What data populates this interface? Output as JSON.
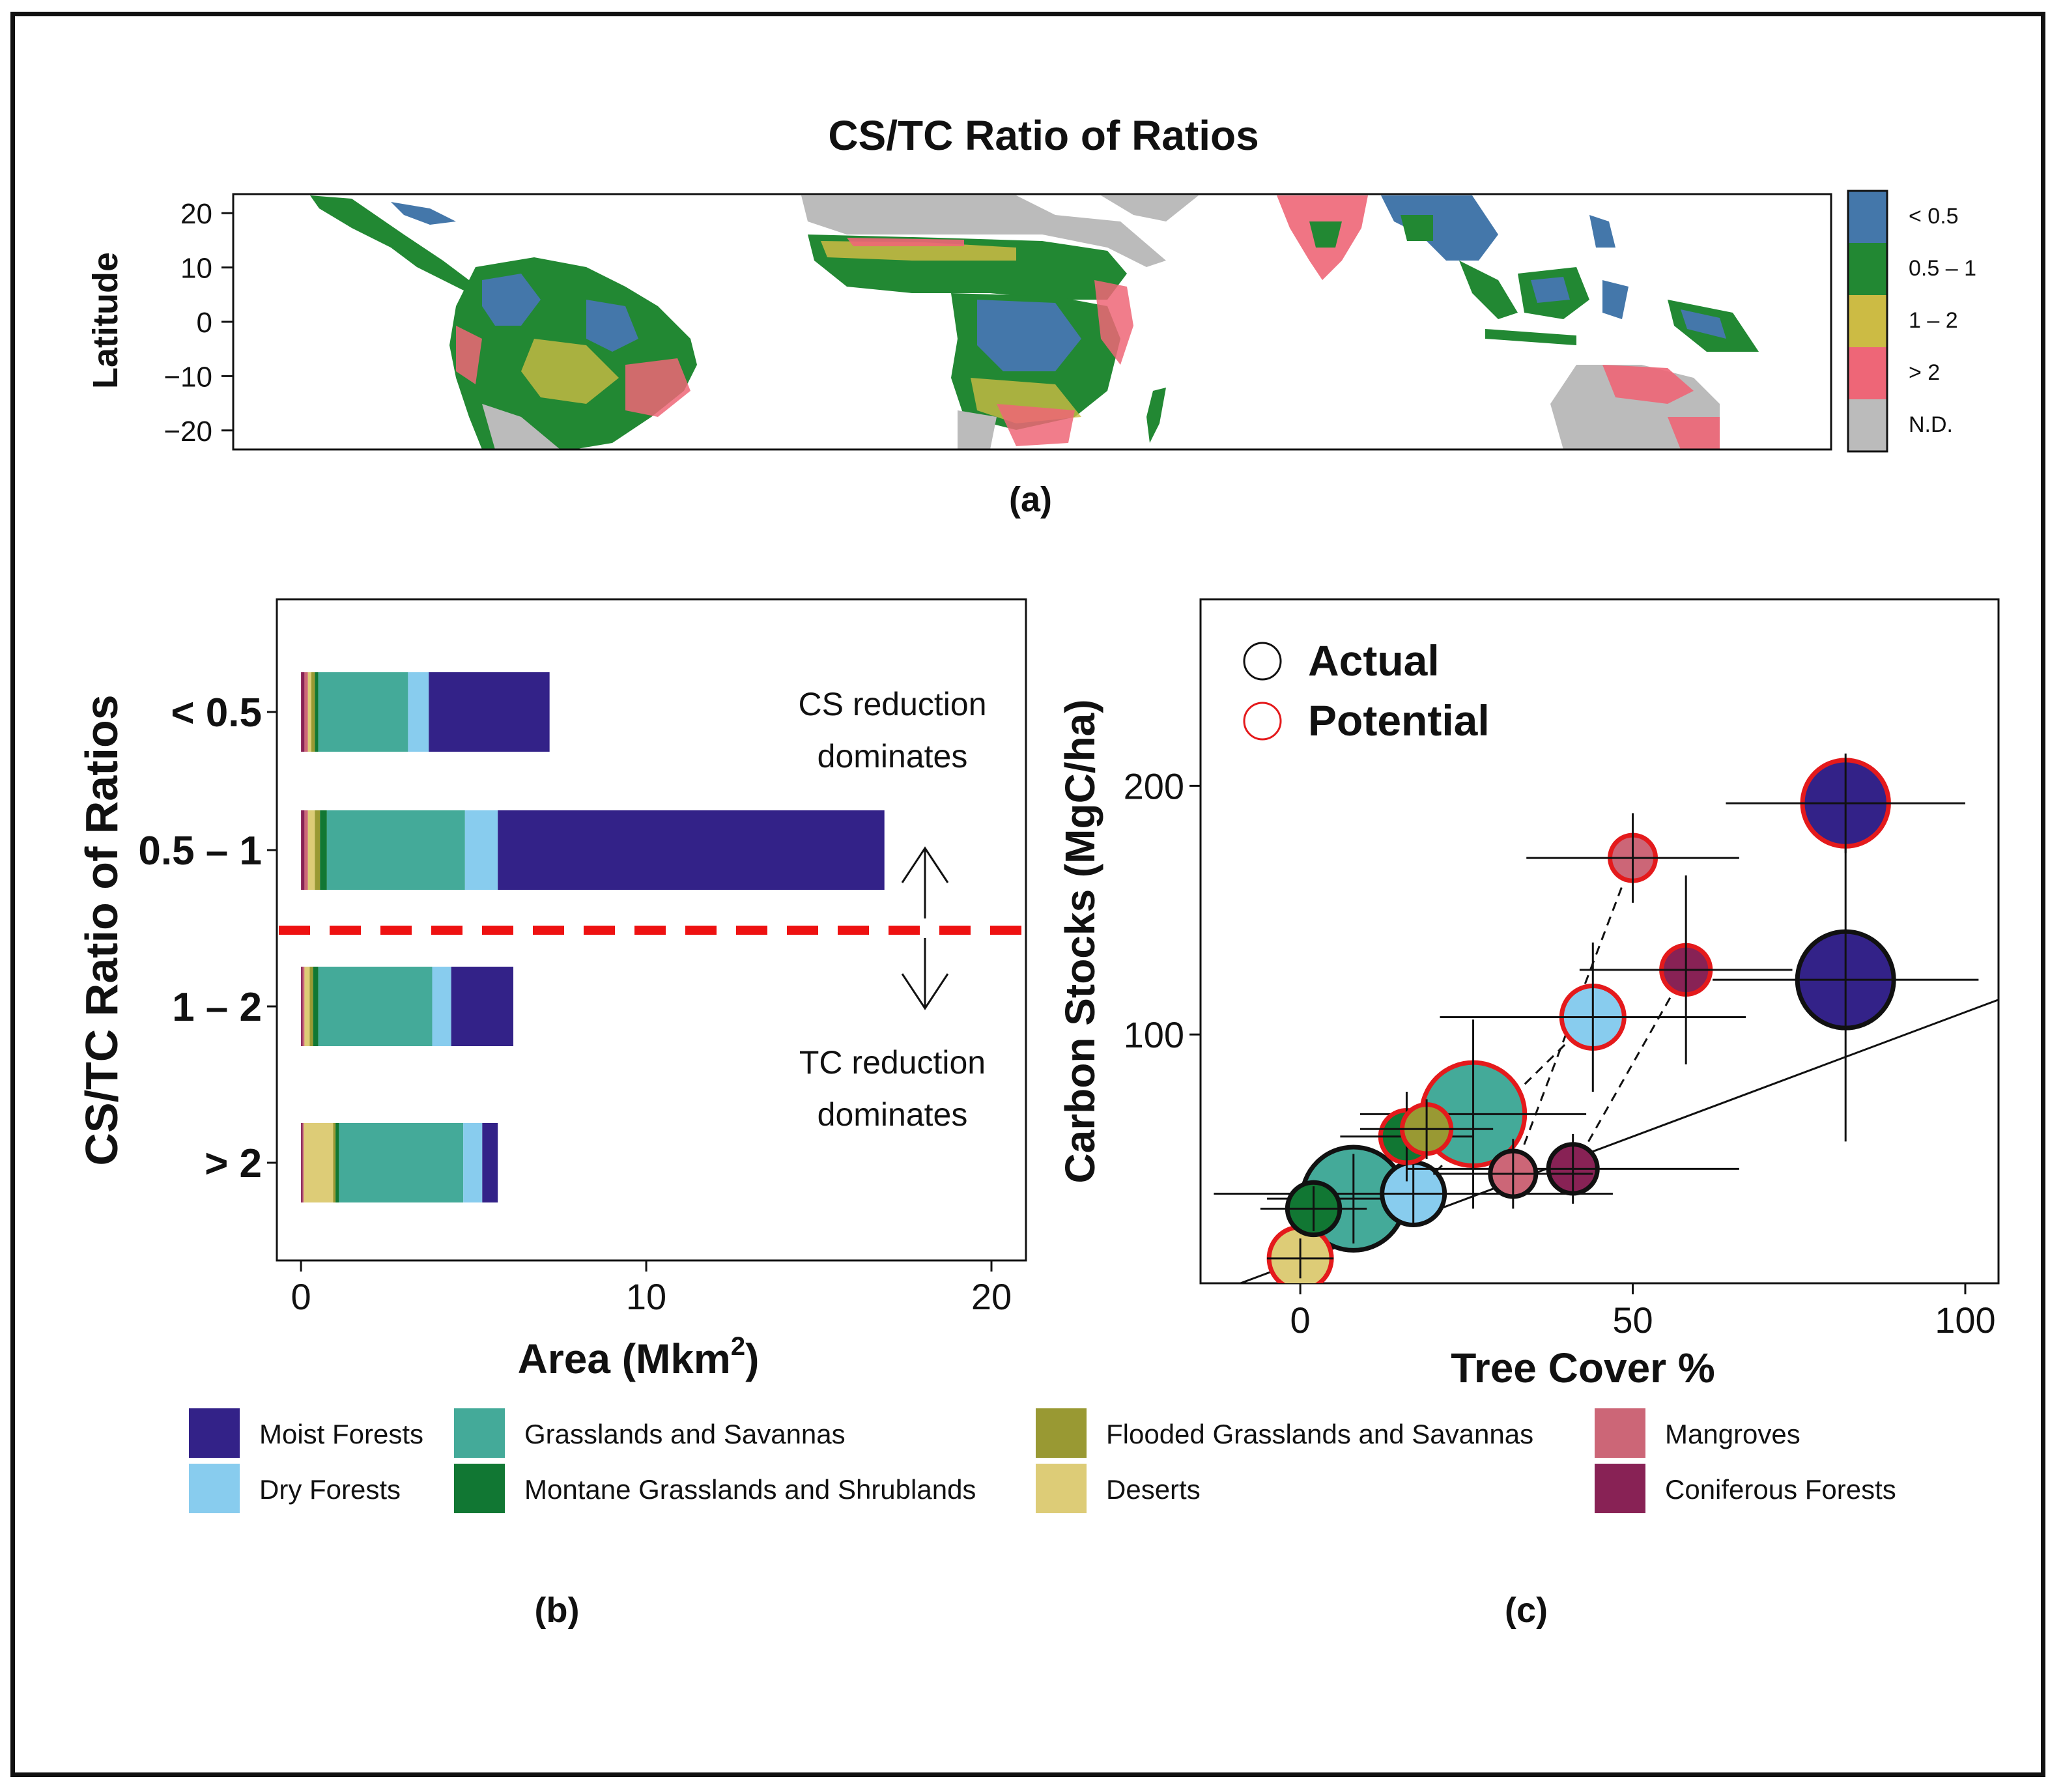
{
  "panel_labels": {
    "a": "(a)",
    "b": "(b)",
    "c": "(c)"
  },
  "colors": {
    "moist_forests": "#332288",
    "dry_forests": "#88CCEE",
    "grasslands_savannas": "#44AA99",
    "montane_grasslands": "#117733",
    "flooded_grasslands": "#999933",
    "deserts": "#DDCC77",
    "mangroves": "#CC6677",
    "coniferous_forests": "#882255",
    "map_lt05": "#4477AA",
    "map_05_1": "#228833",
    "map_1_2": "#CCBB44",
    "map_gt2": "#EE6677",
    "map_nd": "#BBBBBB",
    "dashed_line": "#EE1111",
    "potential_ring": "#E41A1C"
  },
  "chart_data": [
    {
      "id": "a",
      "type": "heatmap",
      "title": "CS/TC Ratio of Ratios",
      "ylabel": "Latitude",
      "yticks": [
        "20",
        "10",
        "0",
        "−10",
        "−20"
      ],
      "ylim": [
        -23.5,
        23.5
      ],
      "legend": [
        {
          "label": "< 0.5",
          "color_key": "map_lt05"
        },
        {
          "label": "0.5 – 1",
          "color_key": "map_05_1"
        },
        {
          "label": "1 – 2",
          "color_key": "map_1_2"
        },
        {
          "label": "> 2",
          "color_key": "map_gt2"
        },
        {
          "label": "N.D.",
          "color_key": "map_nd"
        }
      ]
    },
    {
      "id": "b",
      "type": "bar",
      "orientation": "horizontal",
      "stacked": true,
      "xlabel": "Area (Mkm",
      "xlabel_sup": "2",
      "xlabel_end": ")",
      "ylabel": "CS/TC Ratio of Ratios",
      "xlim": [
        -0.7,
        21
      ],
      "xticks": [
        0,
        10,
        20
      ],
      "categories": [
        "< 0.5",
        "0.5 – 1",
        "1 – 2",
        "> 2"
      ],
      "series": [
        {
          "name": "Coniferous Forests",
          "color_key": "coniferous_forests",
          "values": [
            0.1,
            0.1,
            0.05,
            0.05
          ]
        },
        {
          "name": "Mangroves",
          "color_key": "mangroves",
          "values": [
            0.1,
            0.1,
            0.05,
            0.03
          ]
        },
        {
          "name": "Deserts",
          "color_key": "deserts",
          "values": [
            0.1,
            0.2,
            0.15,
            0.85
          ]
        },
        {
          "name": "Flooded Grasslands and Savannas",
          "color_key": "flooded_grasslands",
          "values": [
            0.1,
            0.15,
            0.1,
            0.07
          ]
        },
        {
          "name": "Montane Grasslands and Shrublands",
          "color_key": "montane_grasslands",
          "values": [
            0.1,
            0.2,
            0.15,
            0.1
          ]
        },
        {
          "name": "Grasslands and Savannas",
          "color_key": "grasslands_savannas",
          "values": [
            2.6,
            4.0,
            3.3,
            3.6
          ]
        },
        {
          "name": "Dry Forests",
          "color_key": "dry_forests",
          "values": [
            0.6,
            0.95,
            0.55,
            0.55
          ]
        },
        {
          "name": "Moist Forests",
          "color_key": "moist_forests",
          "values": [
            3.5,
            11.2,
            1.8,
            0.45
          ]
        }
      ],
      "annotations": {
        "top": [
          "CS reduction",
          "dominates"
        ],
        "bottom": [
          "TC reduction",
          "dominates"
        ],
        "threshold_between": [
          "0.5 – 1",
          "1 – 2"
        ]
      }
    },
    {
      "id": "c",
      "type": "scatter",
      "xlabel": "Tree Cover %",
      "ylabel": "Carbon Stocks (MgC/ha)",
      "xlim": [
        -15,
        105
      ],
      "ylim": [
        0,
        275
      ],
      "xticks": [
        0,
        50,
        100
      ],
      "yticks": [
        100,
        200
      ],
      "legend": [
        {
          "label": "Actual",
          "ring": "black"
        },
        {
          "label": "Potential",
          "ring": "red"
        }
      ],
      "reference_line": {
        "intercept": 9,
        "slope": 1.0
      },
      "points": [
        {
          "biome": "Moist Forests",
          "color_key": "moist_forests",
          "kind": "actual",
          "x": 82,
          "y": 122,
          "xerr": 20,
          "yerr": 65,
          "size": 10
        },
        {
          "biome": "Moist Forests",
          "color_key": "moist_forests",
          "kind": "potential",
          "x": 82,
          "y": 193,
          "xerr": 18,
          "yerr": 20,
          "size": 8.5
        },
        {
          "biome": "Mangroves",
          "color_key": "mangroves",
          "kind": "potential",
          "x": 50,
          "y": 171,
          "xerr": 16,
          "yerr": 18,
          "size": 2.5
        },
        {
          "biome": "Coniferous Forests",
          "color_key": "coniferous_forests",
          "kind": "potential",
          "x": 58,
          "y": 126,
          "xerr": 16,
          "yerr": 38,
          "size": 3
        },
        {
          "biome": "Dry Forests",
          "color_key": "dry_forests",
          "kind": "potential",
          "x": 44,
          "y": 107,
          "xerr": 23,
          "yerr": 30,
          "size": 5
        },
        {
          "biome": "Grasslands and Savannas",
          "color_key": "grasslands_savannas",
          "kind": "potential",
          "x": 26,
          "y": 68,
          "xerr": 17,
          "yerr": 38,
          "size": 11
        },
        {
          "biome": "Flooded Grasslands and Savannas",
          "color_key": "flooded_grasslands",
          "kind": "potential",
          "x": 19,
          "y": 62,
          "xerr": 10,
          "yerr": 12,
          "size": 3
        },
        {
          "biome": "Montane Grasslands and Shrublands",
          "color_key": "montane_grasslands",
          "kind": "potential",
          "x": 16,
          "y": 59,
          "xerr": 10,
          "yerr": 18,
          "size": 3.5
        },
        {
          "biome": "Mangroves",
          "color_key": "mangroves",
          "kind": "actual",
          "x": 32,
          "y": 44,
          "xerr": 12,
          "yerr": 14,
          "size": 2.5
        },
        {
          "biome": "Coniferous Forests",
          "color_key": "coniferous_forests",
          "kind": "actual",
          "x": 41,
          "y": 46,
          "xerr": 25,
          "yerr": 14,
          "size": 3
        },
        {
          "biome": "Dry Forests",
          "color_key": "dry_forests",
          "kind": "actual",
          "x": 17,
          "y": 36,
          "xerr": 30,
          "yerr": 13,
          "size": 5
        },
        {
          "biome": "Grasslands and Savannas",
          "color_key": "grasslands_savannas",
          "kind": "actual",
          "x": 8,
          "y": 34,
          "xerr": 13,
          "yerr": 18,
          "size": 11
        },
        {
          "biome": "Montane Grasslands and Shrublands",
          "color_key": "montane_grasslands",
          "kind": "actual",
          "x": 2,
          "y": 30,
          "xerr": 8,
          "yerr": 9,
          "size": 3.5
        },
        {
          "biome": "Deserts",
          "color_key": "deserts",
          "kind": "potential",
          "x": 0,
          "y": 10,
          "xerr": 5,
          "yerr": 8,
          "size": 5
        }
      ],
      "dashed_links": [
        {
          "from": [
            2,
            30
          ],
          "to": [
            16,
            59
          ]
        },
        {
          "from": [
            8,
            34
          ],
          "to": [
            26,
            68
          ]
        },
        {
          "from": [
            17,
            36
          ],
          "to": [
            44,
            107
          ]
        },
        {
          "from": [
            32,
            44
          ],
          "to": [
            50,
            171
          ]
        },
        {
          "from": [
            41,
            46
          ],
          "to": [
            58,
            126
          ]
        }
      ]
    }
  ],
  "legend_b": [
    {
      "label": "Moist Forests",
      "color_key": "moist_forests"
    },
    {
      "label": "Dry Forests",
      "color_key": "dry_forests"
    },
    {
      "label": "Grasslands and Savannas",
      "color_key": "grasslands_savannas"
    },
    {
      "label": "Montane Grasslands and Shrublands",
      "color_key": "montane_grasslands"
    },
    {
      "label": "Flooded Grasslands and Savannas",
      "color_key": "flooded_grasslands"
    },
    {
      "label": "Deserts",
      "color_key": "deserts"
    },
    {
      "label": "Mangroves",
      "color_key": "mangroves"
    },
    {
      "label": "Coniferous Forests",
      "color_key": "coniferous_forests"
    }
  ]
}
